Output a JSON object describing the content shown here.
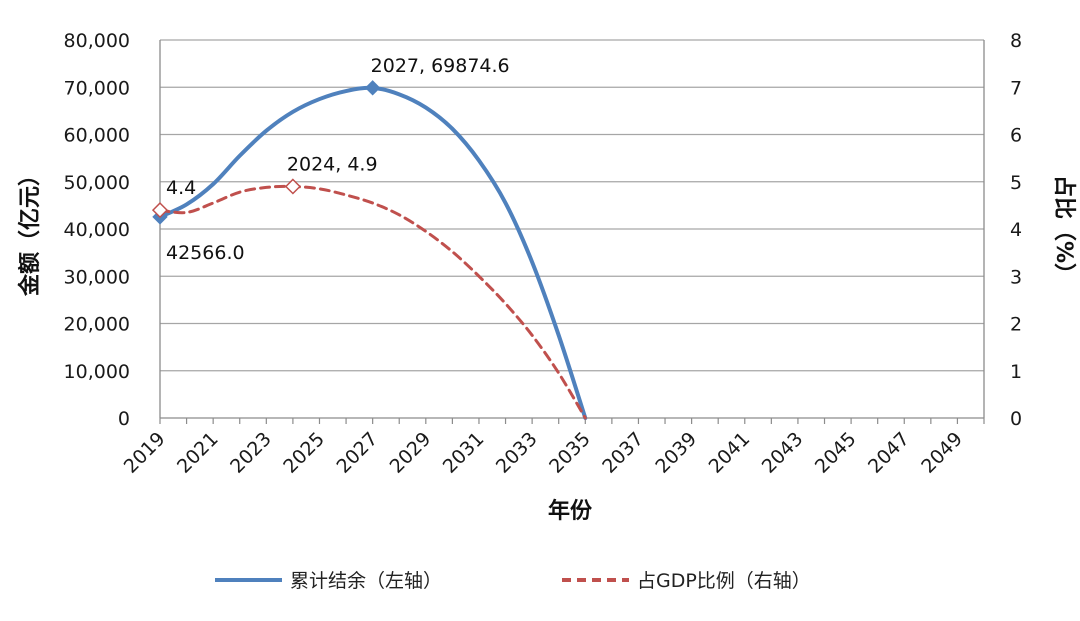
{
  "chart_data": {
    "type": "line",
    "xlabel": "年份",
    "ylabel_left": "金额（亿元）",
    "ylabel_right": "占比（%）",
    "x_range": [
      2019,
      2050
    ],
    "x_ticks": [
      "2019",
      "2021",
      "2023",
      "2025",
      "2027",
      "2029",
      "2031",
      "2033",
      "2035",
      "2037",
      "2039",
      "2041",
      "2043",
      "2045",
      "2047",
      "2049"
    ],
    "ylim_left": [
      0,
      80000
    ],
    "yticks_left": [
      "0",
      "10,000",
      "20,000",
      "30,000",
      "40,000",
      "50,000",
      "60,000",
      "70,000",
      "80,000"
    ],
    "ylim_right": [
      0,
      8
    ],
    "yticks_right": [
      "0",
      "1",
      "2",
      "3",
      "4",
      "5",
      "6",
      "7",
      "8"
    ],
    "grid": true,
    "legend_position": "bottom",
    "series": [
      {
        "name": "累计结余（左轴）",
        "axis": "left",
        "color": "#4f81bd",
        "style": "solid",
        "points": [
          [
            2019,
            42566.0
          ],
          [
            2020,
            45200
          ],
          [
            2021,
            49500
          ],
          [
            2022,
            55500
          ],
          [
            2023,
            60800
          ],
          [
            2024,
            64800
          ],
          [
            2025,
            67500
          ],
          [
            2026,
            69200
          ],
          [
            2027,
            69874.6
          ],
          [
            2028,
            68500
          ],
          [
            2029,
            65700
          ],
          [
            2030,
            61200
          ],
          [
            2031,
            54500
          ],
          [
            2032,
            45500
          ],
          [
            2033,
            33000
          ],
          [
            2034,
            17500
          ],
          [
            2035,
            0
          ]
        ]
      },
      {
        "name": "占GDP比例（右轴）",
        "axis": "right",
        "color": "#c0504d",
        "style": "dashed",
        "points": [
          [
            2019,
            4.4
          ],
          [
            2020,
            4.35
          ],
          [
            2021,
            4.55
          ],
          [
            2022,
            4.78
          ],
          [
            2023,
            4.88
          ],
          [
            2024,
            4.9
          ],
          [
            2025,
            4.85
          ],
          [
            2026,
            4.72
          ],
          [
            2027,
            4.55
          ],
          [
            2028,
            4.3
          ],
          [
            2029,
            3.95
          ],
          [
            2030,
            3.52
          ],
          [
            2031,
            3.0
          ],
          [
            2032,
            2.42
          ],
          [
            2033,
            1.75
          ],
          [
            2034,
            0.95
          ],
          [
            2035,
            0
          ]
        ]
      }
    ],
    "annotations": [
      {
        "text": "42566.0",
        "series": 0,
        "x": 2019,
        "y": 42566.0
      },
      {
        "text": "4.4",
        "series": 1,
        "x": 2019,
        "y": 4.4
      },
      {
        "text": "2024, 4.9",
        "series": 1,
        "x": 2024,
        "y": 4.9
      },
      {
        "text": "2027, 69874.6",
        "series": 0,
        "x": 2027,
        "y": 69874.6
      }
    ]
  }
}
